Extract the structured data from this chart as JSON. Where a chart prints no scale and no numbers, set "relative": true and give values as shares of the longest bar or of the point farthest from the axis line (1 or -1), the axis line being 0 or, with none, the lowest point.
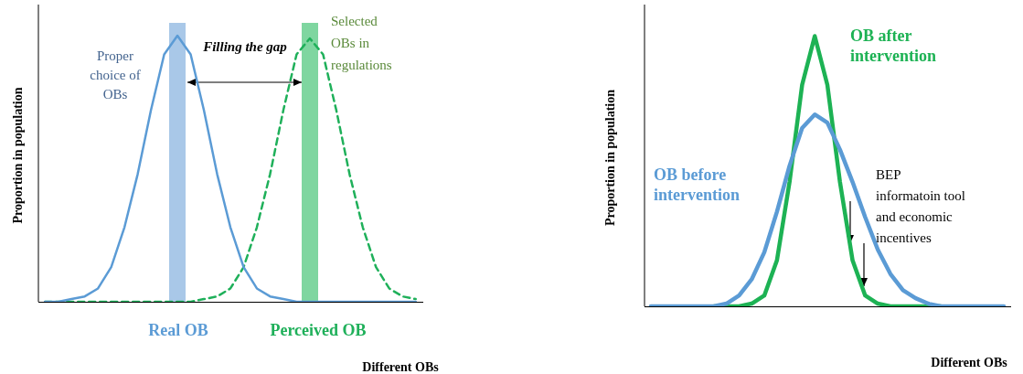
{
  "chart_data": [
    {
      "type": "line",
      "relative": true,
      "categories": [
        null,
        null,
        null,
        null,
        null,
        null,
        null,
        null,
        null,
        null,
        null,
        null,
        null,
        null,
        null,
        null,
        null,
        null,
        null,
        null,
        null,
        null,
        null,
        null,
        null,
        null,
        null,
        null,
        null
      ],
      "xlabel": "Different OBs",
      "ylabel": "Proportion in population",
      "annotations": [
        "Proper\nchoice of\nOBs",
        "Filling the gap",
        "Selected\nOBs in\nregulations"
      ],
      "tick_labels": false,
      "marker": "none",
      "series": [
        {
          "name": "Real OB",
          "color": "#5b9bd5",
          "values": [
            0,
            0,
            0.01,
            0.02,
            0.05,
            0.13,
            0.28,
            0.48,
            0.72,
            0.93,
            1,
            0.93,
            0.72,
            0.48,
            0.28,
            0.13,
            0.05,
            0.02,
            0.01,
            0,
            0,
            0,
            0,
            0,
            0,
            0,
            0,
            0,
            0
          ]
        },
        {
          "name": "Perceived OB",
          "color": "#1fb05a",
          "line_style": "dashed",
          "values": [
            0,
            0,
            0,
            0,
            0,
            0,
            0,
            0,
            0,
            0,
            0,
            0,
            0.01,
            0.02,
            0.05,
            0.13,
            0.28,
            0.48,
            0.72,
            0.93,
            0.99,
            0.93,
            0.72,
            0.48,
            0.28,
            0.13,
            0.05,
            0.02,
            0.01
          ]
        }
      ]
    },
    {
      "type": "line",
      "relative": true,
      "categories": [
        null,
        null,
        null,
        null,
        null,
        null,
        null,
        null,
        null,
        null,
        null,
        null,
        null,
        null,
        null,
        null,
        null,
        null,
        null,
        null,
        null,
        null,
        null,
        null,
        null,
        null,
        null,
        null,
        null
      ],
      "xlabel": "Different OBs",
      "ylabel": "Proportion in population",
      "annotations": [
        "BEP\ninformatoin tool\nand economic\nincentives"
      ],
      "tick_labels": false,
      "marker": "none",
      "series": [
        {
          "name": "OB before intervention",
          "color": "#5b9bd5",
          "values": [
            0,
            0,
            0,
            0,
            0,
            0,
            0.01,
            0.04,
            0.1,
            0.2,
            0.35,
            0.52,
            0.66,
            0.71,
            0.68,
            0.58,
            0.46,
            0.33,
            0.21,
            0.12,
            0.06,
            0.03,
            0.01,
            0,
            0,
            0,
            0,
            0,
            0
          ]
        },
        {
          "name": "OB after intervention",
          "color": "#1db254",
          "values": [
            null,
            null,
            null,
            null,
            null,
            0,
            0,
            0,
            0.01,
            0.04,
            0.17,
            0.46,
            0.82,
            1,
            0.82,
            0.46,
            0.17,
            0.04,
            0.01,
            0,
            0,
            0,
            0,
            0,
            null,
            null,
            null,
            null,
            null
          ]
        }
      ]
    }
  ]
}
